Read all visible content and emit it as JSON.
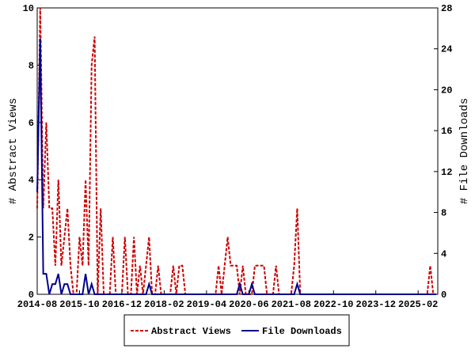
{
  "chart_data": {
    "type": "line",
    "y_label": "# Abstract Views",
    "y2_label": "# File Downloads",
    "x": [
      "2014-08",
      "2014-09",
      "2014-10",
      "2014-11",
      "2014-12",
      "2015-01",
      "2015-02",
      "2015-03",
      "2015-04",
      "2015-05",
      "2015-06",
      "2015-07",
      "2015-08",
      "2015-09",
      "2015-10",
      "2015-11",
      "2015-12",
      "2016-01",
      "2016-02",
      "2016-03",
      "2016-04",
      "2016-05",
      "2016-06",
      "2016-07",
      "2016-08",
      "2016-09",
      "2016-10",
      "2016-11",
      "2016-12",
      "2017-01",
      "2017-02",
      "2017-03",
      "2017-04",
      "2017-05",
      "2017-06",
      "2017-07",
      "2017-08",
      "2017-09",
      "2017-10",
      "2017-11",
      "2017-12",
      "2018-01",
      "2018-02",
      "2018-03",
      "2018-04",
      "2018-05",
      "2018-06",
      "2018-07",
      "2018-08",
      "2018-09",
      "2018-10",
      "2018-11",
      "2018-12",
      "2019-01",
      "2019-02",
      "2019-03",
      "2019-04",
      "2019-05",
      "2019-06",
      "2019-07",
      "2019-08",
      "2019-09",
      "2019-10",
      "2019-11",
      "2019-12",
      "2020-01",
      "2020-02",
      "2020-03",
      "2020-04",
      "2020-05",
      "2020-06",
      "2020-07",
      "2020-08",
      "2020-09",
      "2020-10",
      "2020-11",
      "2020-12",
      "2021-01",
      "2021-02",
      "2021-03",
      "2021-04",
      "2021-05",
      "2021-06",
      "2021-07",
      "2021-08",
      "2021-09",
      "2021-10",
      "2021-11",
      "2021-12",
      "2022-01",
      "2022-02",
      "2022-03",
      "2022-04",
      "2022-05",
      "2022-06",
      "2022-07",
      "2022-08",
      "2022-09",
      "2022-10",
      "2022-11",
      "2022-12",
      "2023-01",
      "2023-02",
      "2023-03",
      "2023-04",
      "2023-05",
      "2023-06",
      "2023-07",
      "2023-08",
      "2023-09",
      "2023-10",
      "2023-11",
      "2023-12",
      "2024-01",
      "2024-02",
      "2024-03",
      "2024-04",
      "2024-05",
      "2024-06",
      "2024-07",
      "2024-08",
      "2024-09",
      "2024-10",
      "2024-11",
      "2024-12",
      "2025-01",
      "2025-02",
      "2025-03",
      "2025-04",
      "2025-05",
      "2025-06",
      "2025-07",
      "2025-08"
    ],
    "xticks": [
      "2014-08",
      "2015-10",
      "2016-12",
      "2018-02",
      "2019-04",
      "2020-06",
      "2021-08",
      "2022-10",
      "2023-12",
      "2025-02"
    ],
    "series": [
      {
        "name": "Abstract Views",
        "color": "#cc0000",
        "dash": true,
        "values": [
          3,
          10,
          3,
          6,
          3,
          3,
          1,
          4,
          1,
          2,
          3,
          1,
          0,
          0,
          2,
          1,
          4,
          1,
          8,
          9,
          0,
          3,
          0,
          0,
          0,
          2,
          0,
          0,
          0,
          2,
          0,
          0,
          2,
          0,
          1,
          0,
          1,
          2,
          0,
          0,
          1,
          0,
          0,
          0,
          0,
          1,
          0,
          1,
          1,
          0,
          0,
          0,
          0,
          0,
          0,
          0,
          0,
          0,
          0,
          0,
          1,
          0,
          1,
          2,
          1,
          1,
          1,
          0,
          1,
          0,
          0,
          0,
          1,
          1,
          1,
          1,
          0,
          0,
          0,
          1,
          0,
          0,
          0,
          0,
          0,
          1,
          3,
          0,
          0,
          0,
          0,
          0,
          0,
          0,
          0,
          0,
          0,
          0,
          0,
          0,
          0,
          0,
          0,
          0,
          0,
          0,
          0,
          0,
          0,
          0,
          0,
          0,
          0,
          0,
          0,
          0,
          0,
          0,
          0,
          0,
          0,
          0,
          0,
          0,
          0,
          0,
          0,
          0,
          0,
          0,
          1,
          0,
          0
        ]
      },
      {
        "name": "File Downloads",
        "color": "#00008b",
        "dash": false,
        "axis": "y2",
        "values": [
          10,
          25,
          2,
          2,
          0,
          1,
          1,
          2,
          0,
          1,
          1,
          0,
          0,
          0,
          0,
          0,
          2,
          0,
          1,
          0,
          0,
          0,
          0,
          0,
          0,
          0,
          0,
          0,
          0,
          0,
          0,
          0,
          0,
          0,
          0,
          0,
          0,
          1,
          0,
          0,
          0,
          0,
          0,
          0,
          0,
          0,
          0,
          0,
          0,
          0,
          0,
          0,
          0,
          0,
          0,
          0,
          0,
          0,
          0,
          0,
          0,
          0,
          0,
          0,
          0,
          0,
          0,
          1,
          0,
          0,
          0,
          1,
          0,
          0,
          0,
          0,
          0,
          0,
          0,
          0,
          0,
          0,
          0,
          0,
          0,
          0,
          1,
          0,
          0,
          0,
          0,
          0,
          0,
          0,
          0,
          0,
          0,
          0,
          0,
          0,
          0,
          0,
          0,
          0,
          0,
          0,
          0,
          0,
          0,
          0,
          0,
          0,
          0,
          0,
          0,
          0,
          0,
          0,
          0,
          0,
          0,
          0,
          0,
          0,
          0,
          0,
          0,
          0,
          0,
          0,
          0,
          0,
          0
        ]
      }
    ],
    "ylim": [
      0,
      10
    ],
    "yticks": [
      0,
      2,
      4,
      6,
      8,
      10
    ],
    "y2lim": [
      0,
      28
    ],
    "y2ticks": [
      0,
      4,
      8,
      12,
      16,
      20,
      24,
      28
    ]
  }
}
